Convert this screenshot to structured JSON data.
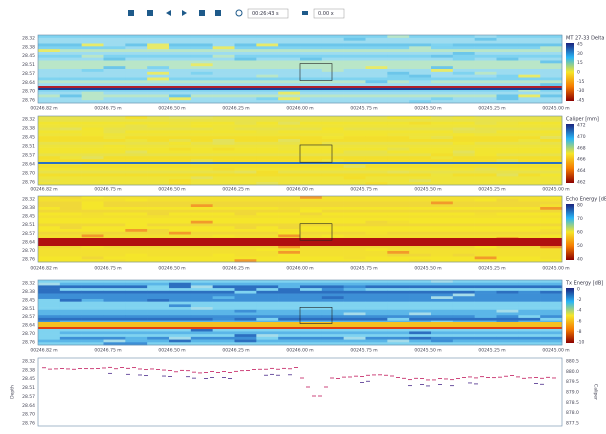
{
  "toolbar": {
    "time": "00:26:43 s",
    "speed": "0.00 x"
  },
  "x_labels": [
    "00246.82 m",
    "00246.75 m",
    "00246.50 m",
    "00246.25 m",
    "00246.00 m",
    "00245.75 m",
    "00245.50 m",
    "00245.25 m",
    "00245.00 m"
  ],
  "panels": [
    {
      "title": "MT 27-33 Delta [mm]",
      "depth_labels": [
        "28.32",
        "28.38",
        "28.45",
        "28.51",
        "28.57",
        "28.64",
        "28.70",
        "28.76"
      ],
      "scale_labels": [
        "45",
        "30",
        "15",
        "0",
        "-15",
        "-30",
        "-45"
      ]
    },
    {
      "title": "Caliper [mm]",
      "depth_labels": [
        "28.32",
        "28.38",
        "28.45",
        "28.51",
        "28.57",
        "28.64",
        "28.70",
        "28.76"
      ],
      "scale_labels": [
        "472",
        "470",
        "468",
        "466",
        "464",
        "462"
      ]
    },
    {
      "title": "Echo Energy [dB]",
      "depth_labels": [
        "28.32",
        "28.38",
        "28.45",
        "28.51",
        "28.57",
        "28.64",
        "28.70",
        "28.76"
      ],
      "scale_labels": [
        "80",
        "70",
        "60",
        "50",
        "40"
      ]
    },
    {
      "title": "Tx Energy [dB]",
      "depth_labels": [
        "28.32",
        "28.38",
        "28.45",
        "28.51",
        "28.57",
        "28.64",
        "28.70",
        "28.76"
      ],
      "scale_labels": [
        "0",
        "-2",
        "-4",
        "-6",
        "-8",
        "-10"
      ]
    }
  ],
  "line_plot": {
    "axis_label": "Depth",
    "right_label": "Caliper",
    "depth_labels": [
      "28.32",
      "28.38",
      "28.45",
      "28.51",
      "28.57",
      "28.64",
      "28.70",
      "28.76"
    ],
    "scale_labels": [
      "880.5",
      "880.0",
      "879.5",
      "879.0",
      "878.5",
      "878.0",
      "877.5"
    ]
  }
}
